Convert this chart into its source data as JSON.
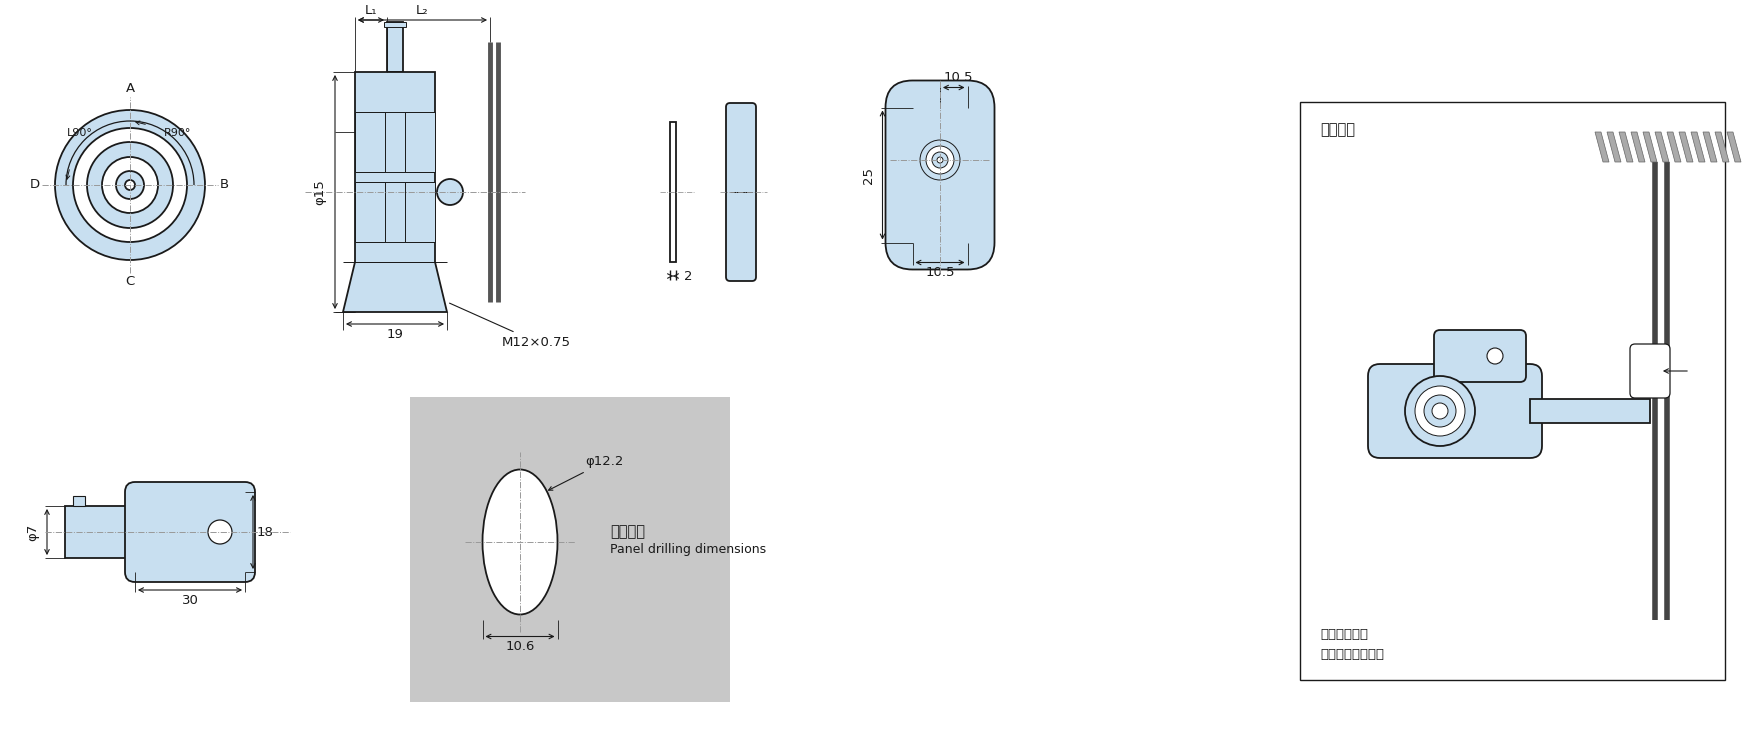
{
  "bg_color": "#ffffff",
  "light_blue": "#c8dff0",
  "line_color": "#1a1a1a",
  "gray_bg": "#c8c8c8",
  "fig_width": 17.54,
  "fig_height": 7.52,
  "annotations": {
    "L1": "L₁",
    "L2": "L₂",
    "phi15": "φ15",
    "dim19": "19",
    "M12": "M12×0.75",
    "dim2": "2",
    "dim25": "25",
    "dim10_5_top": "10.5",
    "dim10_5_bot": "10.5",
    "phi7": "φ7",
    "dim18": "18",
    "dim30": "30",
    "phi12_2": "φ12.2",
    "dim10_6": "10.6",
    "panel_text1": "板孔尺寸",
    "panel_text2": "Panel drilling dimensions",
    "install_title": "安装方法",
    "install_text1": "可在附带挡板",
    "install_text2": "的状态下进行安装",
    "A": "A",
    "B": "B",
    "C": "C",
    "D": "D",
    "L90": "L90°",
    "R90": "R90°"
  }
}
